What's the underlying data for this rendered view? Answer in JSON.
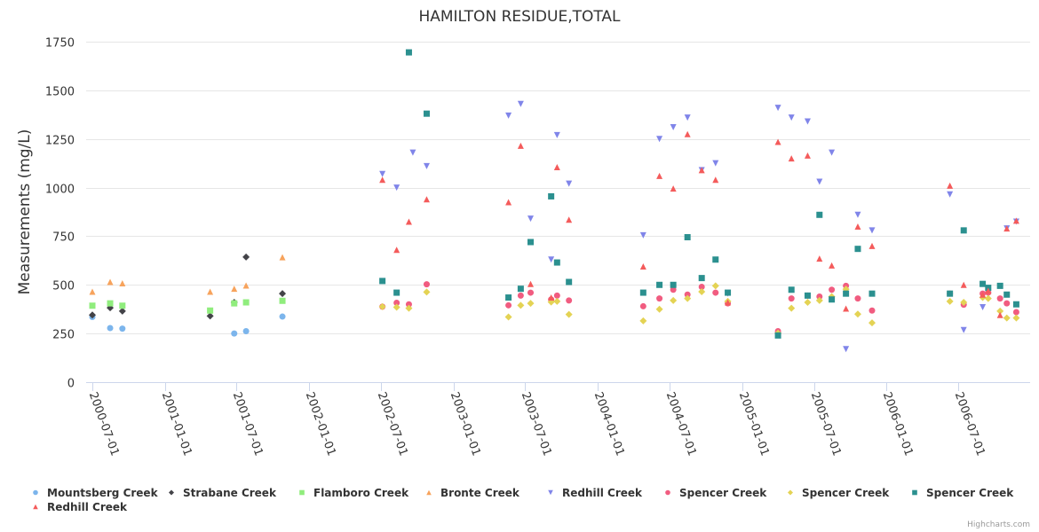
{
  "chart_data": {
    "type": "scatter",
    "title": "HAMILTON RESIDUE,TOTAL",
    "xlabel": "",
    "ylabel": "Measurements (mg/L)",
    "ylim": [
      0,
      1750
    ],
    "yticks": [
      0,
      250,
      500,
      750,
      1000,
      1250,
      1500,
      1750
    ],
    "xlim": [
      "2000-06-12",
      "2006-11-20"
    ],
    "xticks": [
      "2000-07-01",
      "2001-01-01",
      "2001-07-01",
      "2002-01-01",
      "2002-07-01",
      "2003-01-01",
      "2003-07-01",
      "2004-01-01",
      "2004-07-01",
      "2005-01-01",
      "2005-07-01",
      "2006-01-01",
      "2006-07-01"
    ],
    "grid": true,
    "legend_position": "bottom",
    "credits": "Highcharts.com",
    "series": [
      {
        "name": "Mountsberg Creek",
        "symbol": "circle",
        "color": "#7cb5ec",
        "points": [
          [
            "2000-07-01",
            335
          ],
          [
            "2000-08-15",
            278
          ],
          [
            "2000-09-15",
            275
          ],
          [
            "2001-06-25",
            250
          ],
          [
            "2001-07-25",
            262
          ],
          [
            "2001-10-25",
            337
          ]
        ]
      },
      {
        "name": "Strabane Creek",
        "symbol": "diamond",
        "color": "#434348",
        "points": [
          [
            "2000-07-01",
            345
          ],
          [
            "2000-08-15",
            382
          ],
          [
            "2000-09-15",
            365
          ],
          [
            "2001-04-25",
            340
          ],
          [
            "2001-06-25",
            410
          ],
          [
            "2001-07-25",
            643
          ],
          [
            "2001-10-25",
            455
          ]
        ]
      },
      {
        "name": "Flamboro Creek",
        "symbol": "square",
        "color": "#90ed7d",
        "points": [
          [
            "2000-07-01",
            393
          ],
          [
            "2000-08-15",
            405
          ],
          [
            "2000-09-15",
            393
          ],
          [
            "2001-04-25",
            368
          ],
          [
            "2001-06-25",
            405
          ],
          [
            "2001-07-25",
            410
          ],
          [
            "2001-10-25",
            418
          ]
        ]
      },
      {
        "name": "Bronte Creek",
        "symbol": "triangle",
        "color": "#f7a35c",
        "points": [
          [
            "2000-07-01",
            465
          ],
          [
            "2000-08-15",
            515
          ],
          [
            "2000-09-15",
            508
          ],
          [
            "2001-04-25",
            465
          ],
          [
            "2001-06-25",
            480
          ],
          [
            "2001-07-25",
            497
          ],
          [
            "2001-10-25",
            642
          ]
        ]
      },
      {
        "name": "Redhill Creek",
        "symbol": "triangle-down",
        "color": "#8085e9",
        "points": [
          [
            "2002-07-05",
            1070
          ],
          [
            "2002-08-10",
            1000
          ],
          [
            "2002-09-20",
            1180
          ],
          [
            "2002-10-25",
            1110
          ],
          [
            "2003-05-20",
            1370
          ],
          [
            "2003-06-20",
            1430
          ],
          [
            "2003-07-15",
            840
          ],
          [
            "2003-09-05",
            630
          ],
          [
            "2003-09-20",
            1270
          ],
          [
            "2003-10-20",
            1020
          ],
          [
            "2004-04-25",
            755
          ],
          [
            "2004-06-05",
            1250
          ],
          [
            "2004-07-10",
            1310
          ],
          [
            "2004-08-15",
            1360
          ],
          [
            "2004-09-20",
            1090
          ],
          [
            "2004-10-25",
            1125
          ],
          [
            "2004-11-25",
            455
          ],
          [
            "2005-04-01",
            1410
          ],
          [
            "2005-05-05",
            1360
          ],
          [
            "2005-06-15",
            1340
          ],
          [
            "2005-07-15",
            1030
          ],
          [
            "2005-08-15",
            1180
          ],
          [
            "2005-09-20",
            170
          ],
          [
            "2005-10-20",
            860
          ],
          [
            "2005-11-25",
            780
          ],
          [
            "2006-06-10",
            965
          ],
          [
            "2006-07-15",
            268
          ],
          [
            "2006-09-01",
            385
          ],
          [
            "2006-11-01",
            790
          ],
          [
            "2006-11-25",
            825
          ]
        ]
      },
      {
        "name": "Spencer Creek",
        "symbol": "circle",
        "color": "#f15c80",
        "points": [
          [
            "2002-07-05",
            388
          ],
          [
            "2002-08-10",
            408
          ],
          [
            "2002-09-10",
            400
          ],
          [
            "2002-10-25",
            503
          ],
          [
            "2003-05-20",
            395
          ],
          [
            "2003-06-20",
            445
          ],
          [
            "2003-07-15",
            460
          ],
          [
            "2003-09-05",
            425
          ],
          [
            "2003-09-20",
            445
          ],
          [
            "2003-10-20",
            420
          ],
          [
            "2004-04-25",
            390
          ],
          [
            "2004-06-05",
            430
          ],
          [
            "2004-07-10",
            475
          ],
          [
            "2004-08-15",
            450
          ],
          [
            "2004-09-20",
            490
          ],
          [
            "2004-10-25",
            460
          ],
          [
            "2004-11-25",
            405
          ],
          [
            "2005-04-01",
            262
          ],
          [
            "2005-05-05",
            430
          ],
          [
            "2005-06-15",
            445
          ],
          [
            "2005-07-15",
            440
          ],
          [
            "2005-08-15",
            475
          ],
          [
            "2005-09-20",
            495
          ],
          [
            "2005-10-20",
            430
          ],
          [
            "2005-11-25",
            368
          ],
          [
            "2006-06-10",
            455
          ],
          [
            "2006-07-15",
            398
          ],
          [
            "2006-09-01",
            455
          ],
          [
            "2006-09-15",
            460
          ],
          [
            "2006-10-15",
            430
          ],
          [
            "2006-11-01",
            405
          ],
          [
            "2006-11-25",
            360
          ]
        ]
      },
      {
        "name": "Spencer Creek",
        "symbol": "diamond",
        "color": "#e4d354",
        "points": [
          [
            "2002-07-05",
            388
          ],
          [
            "2002-08-10",
            385
          ],
          [
            "2002-09-10",
            380
          ],
          [
            "2002-10-25",
            463
          ],
          [
            "2003-05-20",
            335
          ],
          [
            "2003-06-20",
            395
          ],
          [
            "2003-07-15",
            405
          ],
          [
            "2003-09-05",
            412
          ],
          [
            "2003-09-20",
            415
          ],
          [
            "2003-10-20",
            348
          ],
          [
            "2004-04-25",
            315
          ],
          [
            "2004-06-05",
            375
          ],
          [
            "2004-07-10",
            420
          ],
          [
            "2004-08-15",
            430
          ],
          [
            "2004-09-20",
            465
          ],
          [
            "2004-10-25",
            495
          ],
          [
            "2004-11-25",
            415
          ],
          [
            "2005-04-01",
            252
          ],
          [
            "2005-05-05",
            380
          ],
          [
            "2005-06-15",
            410
          ],
          [
            "2005-07-15",
            420
          ],
          [
            "2005-08-15",
            440
          ],
          [
            "2005-09-20",
            478
          ],
          [
            "2005-10-20",
            350
          ],
          [
            "2005-11-25",
            305
          ],
          [
            "2006-06-10",
            415
          ],
          [
            "2006-07-15",
            410
          ],
          [
            "2006-09-01",
            435
          ],
          [
            "2006-09-15",
            430
          ],
          [
            "2006-10-15",
            365
          ],
          [
            "2006-11-01",
            330
          ],
          [
            "2006-11-25",
            330
          ]
        ]
      },
      {
        "name": "Spencer Creek",
        "symbol": "square",
        "color": "#2b908f",
        "points": [
          [
            "2002-07-05",
            520
          ],
          [
            "2002-08-10",
            460
          ],
          [
            "2002-09-10",
            1695
          ],
          [
            "2002-10-25",
            1380
          ],
          [
            "2003-05-20",
            435
          ],
          [
            "2003-06-20",
            480
          ],
          [
            "2003-07-15",
            720
          ],
          [
            "2003-09-05",
            955
          ],
          [
            "2003-09-20",
            615
          ],
          [
            "2003-10-20",
            515
          ],
          [
            "2004-04-25",
            460
          ],
          [
            "2004-06-05",
            500
          ],
          [
            "2004-07-10",
            500
          ],
          [
            "2004-08-15",
            745
          ],
          [
            "2004-09-20",
            535
          ],
          [
            "2004-10-25",
            630
          ],
          [
            "2004-11-25",
            460
          ],
          [
            "2005-04-01",
            240
          ],
          [
            "2005-05-05",
            475
          ],
          [
            "2005-06-15",
            445
          ],
          [
            "2005-07-15",
            860
          ],
          [
            "2005-08-15",
            425
          ],
          [
            "2005-09-20",
            455
          ],
          [
            "2005-10-20",
            685
          ],
          [
            "2005-11-25",
            455
          ],
          [
            "2006-06-10",
            455
          ],
          [
            "2006-07-15",
            780
          ],
          [
            "2006-09-01",
            505
          ],
          [
            "2006-09-15",
            485
          ],
          [
            "2006-10-15",
            495
          ],
          [
            "2006-11-01",
            450
          ],
          [
            "2006-11-25",
            400
          ]
        ]
      },
      {
        "name": "Redhill Creek",
        "symbol": "triangle",
        "color": "#f45b5b",
        "points": [
          [
            "2002-07-05",
            1040
          ],
          [
            "2002-08-10",
            680
          ],
          [
            "2002-09-10",
            825
          ],
          [
            "2002-10-25",
            940
          ],
          [
            "2003-05-20",
            925
          ],
          [
            "2003-06-20",
            1215
          ],
          [
            "2003-07-15",
            505
          ],
          [
            "2003-09-05",
            435
          ],
          [
            "2003-09-20",
            1105
          ],
          [
            "2003-10-20",
            835
          ],
          [
            "2004-04-25",
            595
          ],
          [
            "2004-06-05",
            1060
          ],
          [
            "2004-07-10",
            995
          ],
          [
            "2004-08-15",
            1275
          ],
          [
            "2004-09-20",
            1090
          ],
          [
            "2004-10-25",
            1040
          ],
          [
            "2004-11-25",
            410
          ],
          [
            "2005-04-01",
            1235
          ],
          [
            "2005-05-05",
            1150
          ],
          [
            "2005-06-15",
            1165
          ],
          [
            "2005-07-15",
            635
          ],
          [
            "2005-08-15",
            600
          ],
          [
            "2005-09-20",
            378
          ],
          [
            "2005-10-20",
            800
          ],
          [
            "2005-11-25",
            700
          ],
          [
            "2006-06-10",
            1010
          ],
          [
            "2006-07-15",
            500
          ],
          [
            "2006-09-01",
            450
          ],
          [
            "2006-09-15",
            470
          ],
          [
            "2006-10-15",
            345
          ],
          [
            "2006-11-01",
            790
          ],
          [
            "2006-11-25",
            830
          ]
        ]
      }
    ]
  }
}
